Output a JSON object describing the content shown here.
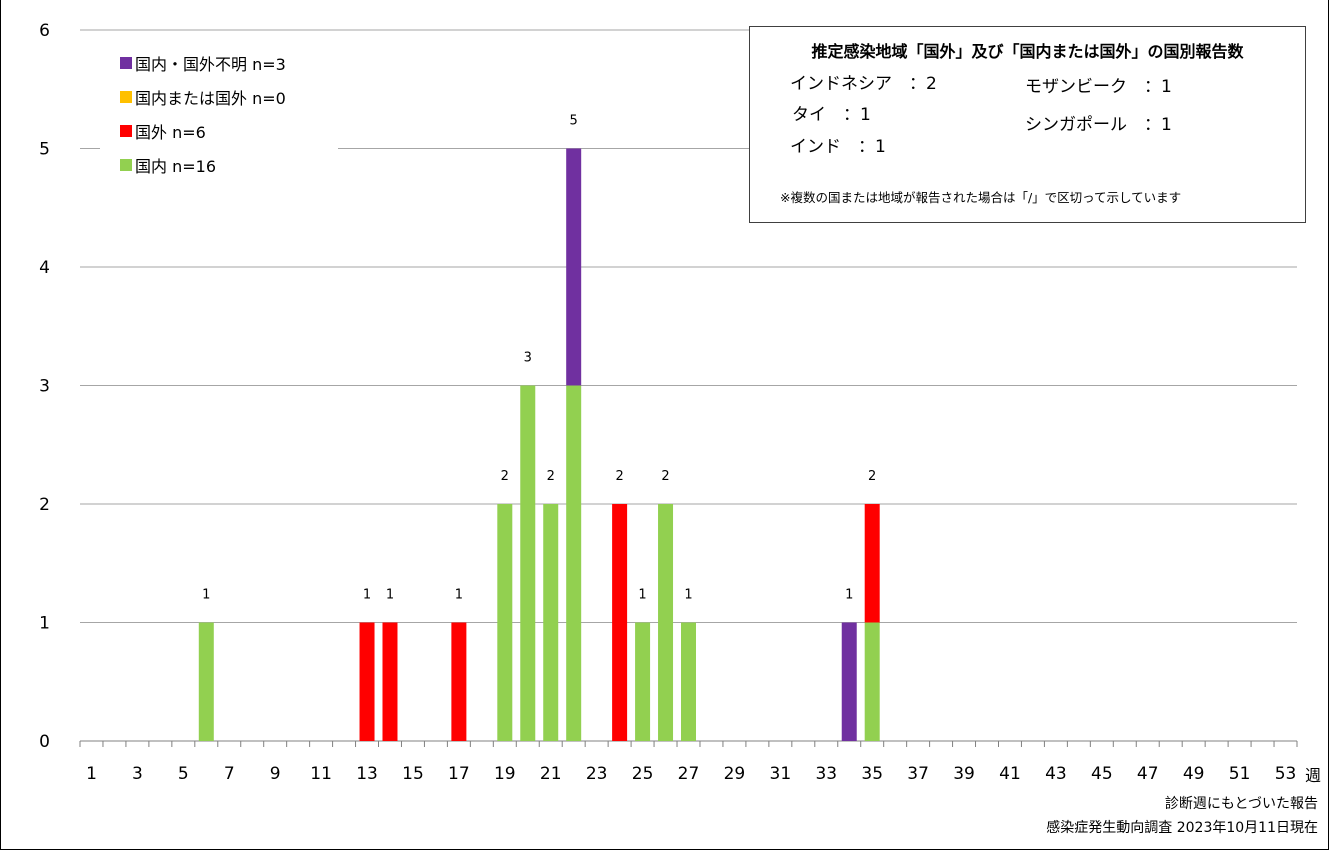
{
  "chart_data": {
    "type": "bar",
    "stacked": true,
    "x": [
      1,
      2,
      3,
      4,
      5,
      6,
      7,
      8,
      9,
      10,
      11,
      12,
      13,
      14,
      15,
      16,
      17,
      18,
      19,
      20,
      21,
      22,
      23,
      24,
      25,
      26,
      27,
      28,
      29,
      30,
      31,
      32,
      33,
      34,
      35,
      36,
      37,
      38,
      39,
      40,
      41,
      42,
      43,
      44,
      45,
      46,
      47,
      48,
      49,
      50,
      51,
      52,
      53
    ],
    "xtick_labels": [
      "1",
      "3",
      "5",
      "7",
      "9",
      "11",
      "13",
      "15",
      "17",
      "19",
      "21",
      "23",
      "25",
      "27",
      "29",
      "31",
      "33",
      "35",
      "37",
      "39",
      "41",
      "43",
      "45",
      "47",
      "49",
      "51",
      "53"
    ],
    "xlabel": "週",
    "ylim": [
      0,
      6
    ],
    "yticks": [
      "0",
      "1",
      "2",
      "3",
      "4",
      "5",
      "6"
    ],
    "grid": true,
    "series": [
      {
        "name": "国内 n=16",
        "color": "#92D050",
        "values": [
          0,
          0,
          0,
          0,
          0,
          1,
          0,
          0,
          0,
          0,
          0,
          0,
          0,
          0,
          0,
          0,
          0,
          0,
          2,
          3,
          2,
          3,
          0,
          0,
          1,
          2,
          1,
          0,
          0,
          0,
          0,
          0,
          0,
          0,
          1,
          0,
          0,
          0,
          0,
          0,
          0,
          0,
          0,
          0,
          0,
          0,
          0,
          0,
          0,
          0,
          0,
          0,
          0
        ]
      },
      {
        "name": "国外 n=6",
        "color": "#FF0000",
        "values": [
          0,
          0,
          0,
          0,
          0,
          0,
          0,
          0,
          0,
          0,
          0,
          0,
          1,
          1,
          0,
          0,
          1,
          0,
          0,
          0,
          0,
          0,
          0,
          2,
          0,
          0,
          0,
          0,
          0,
          0,
          0,
          0,
          0,
          0,
          1,
          0,
          0,
          0,
          0,
          0,
          0,
          0,
          0,
          0,
          0,
          0,
          0,
          0,
          0,
          0,
          0,
          0,
          0
        ]
      },
      {
        "name": "国内または国外 n=0",
        "color": "#FFC000",
        "values": [
          0,
          0,
          0,
          0,
          0,
          0,
          0,
          0,
          0,
          0,
          0,
          0,
          0,
          0,
          0,
          0,
          0,
          0,
          0,
          0,
          0,
          0,
          0,
          0,
          0,
          0,
          0,
          0,
          0,
          0,
          0,
          0,
          0,
          0,
          0,
          0,
          0,
          0,
          0,
          0,
          0,
          0,
          0,
          0,
          0,
          0,
          0,
          0,
          0,
          0,
          0,
          0,
          0
        ]
      },
      {
        "name": "国内・国外不明 n=3",
        "color": "#7030A0",
        "values": [
          0,
          0,
          0,
          0,
          0,
          0,
          0,
          0,
          0,
          0,
          0,
          0,
          0,
          0,
          0,
          0,
          0,
          0,
          0,
          0,
          0,
          2,
          0,
          0,
          0,
          0,
          0,
          0,
          0,
          0,
          0,
          0,
          0,
          1,
          0,
          0,
          0,
          0,
          0,
          0,
          0,
          0,
          0,
          0,
          0,
          0,
          0,
          0,
          0,
          0,
          0,
          0,
          0
        ]
      }
    ],
    "legend_order": [
      "国内・国外不明 n=3",
      "国内または国外 n=0",
      "国外 n=6",
      "国内 n=16"
    ],
    "legend_position": "top-left"
  },
  "infobox": {
    "title": "推定感染地域「国外」及び「国内または国外」の国別報告数",
    "items": [
      "インドネシア　：2",
      "タイ　：1",
      "インド　：1",
      "モザンビーク　：1",
      "シンガポール　：1"
    ],
    "note": "※複数の国または地域が報告された場合は「/」で区切って示しています"
  },
  "footer": {
    "line1": "診断週にもとづいた報告",
    "line2": "感染症発生動向調査 2023年10月11日現在"
  }
}
